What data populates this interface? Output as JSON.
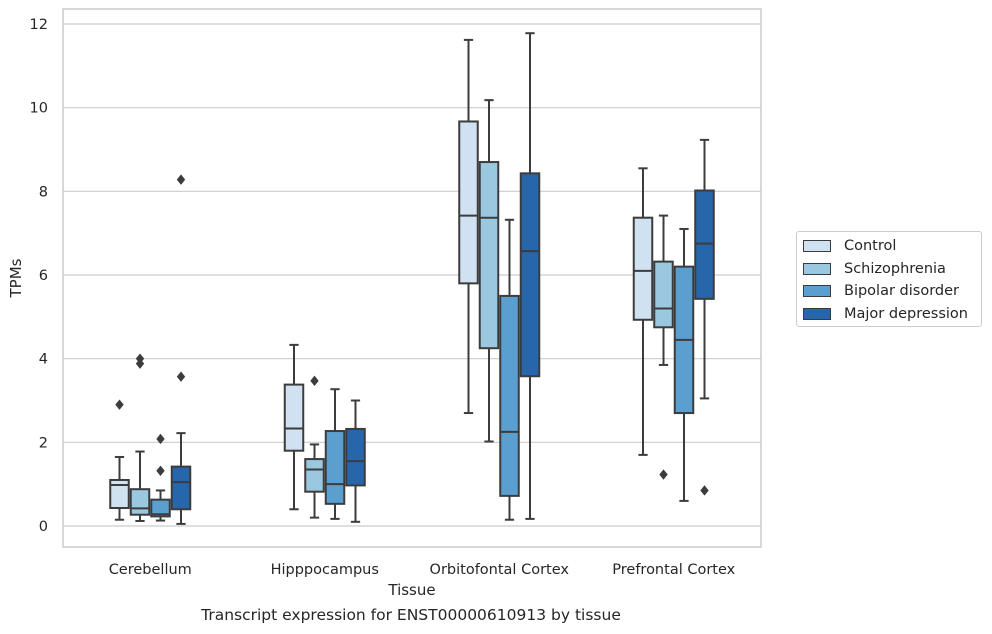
{
  "caption": "Transcript expression for ENST00000610913 by tissue",
  "chart_data": {
    "type": "box",
    "title": "",
    "xlabel": "Tissue",
    "ylabel": "TPMs",
    "ylim": [
      -0.5,
      12.35
    ],
    "yticks": [
      0,
      2,
      4,
      6,
      8,
      10,
      12
    ],
    "grid": true,
    "legend_position": "right",
    "categories": [
      "Cerebellum",
      "Hipppocampus",
      "Orbitofontal Cortex",
      "Prefrontal Cortex"
    ],
    "series": [
      {
        "name": "Control",
        "color": "#d0e1f2",
        "boxes": [
          {
            "whisker_low": 0.15,
            "q1": 0.43,
            "median": 0.98,
            "q3": 1.1,
            "whisker_high": 1.65,
            "outliers": [
              2.9
            ]
          },
          {
            "whisker_low": 0.4,
            "q1": 1.8,
            "median": 2.33,
            "q3": 3.38,
            "whisker_high": 4.33,
            "outliers": []
          },
          {
            "whisker_low": 2.7,
            "q1": 5.8,
            "median": 7.42,
            "q3": 9.67,
            "whisker_high": 11.62,
            "outliers": []
          },
          {
            "whisker_low": 1.7,
            "q1": 4.93,
            "median": 6.1,
            "q3": 7.37,
            "whisker_high": 8.55,
            "outliers": []
          }
        ]
      },
      {
        "name": "Schizophrenia",
        "color": "#9ac8e0",
        "boxes": [
          {
            "whisker_low": 0.12,
            "q1": 0.27,
            "median": 0.42,
            "q3": 0.88,
            "whisker_high": 1.78,
            "outliers": [
              3.88,
              4.0
            ]
          },
          {
            "whisker_low": 0.2,
            "q1": 0.82,
            "median": 1.35,
            "q3": 1.6,
            "whisker_high": 1.95,
            "outliers": [
              3.47
            ]
          },
          {
            "whisker_low": 2.02,
            "q1": 4.25,
            "median": 7.37,
            "q3": 8.7,
            "whisker_high": 10.18,
            "outliers": []
          },
          {
            "whisker_low": 3.85,
            "q1": 4.75,
            "median": 5.2,
            "q3": 6.32,
            "whisker_high": 7.42,
            "outliers": [
              1.23
            ]
          }
        ]
      },
      {
        "name": "Bipolar disorder",
        "color": "#5a9fcf",
        "boxes": [
          {
            "whisker_low": 0.13,
            "q1": 0.23,
            "median": 0.28,
            "q3": 0.63,
            "whisker_high": 0.85,
            "outliers": [
              1.32,
              2.08
            ]
          },
          {
            "whisker_low": 0.17,
            "q1": 0.53,
            "median": 1.0,
            "q3": 2.27,
            "whisker_high": 3.27,
            "outliers": []
          },
          {
            "whisker_low": 0.15,
            "q1": 0.72,
            "median": 2.25,
            "q3": 5.5,
            "whisker_high": 7.32,
            "outliers": []
          },
          {
            "whisker_low": 0.6,
            "q1": 2.7,
            "median": 4.45,
            "q3": 6.2,
            "whisker_high": 7.1,
            "outliers": []
          }
        ]
      },
      {
        "name": "Major depression",
        "color": "#2766ab",
        "boxes": [
          {
            "whisker_low": 0.05,
            "q1": 0.4,
            "median": 1.05,
            "q3": 1.42,
            "whisker_high": 2.22,
            "outliers": [
              3.57,
              8.28
            ]
          },
          {
            "whisker_low": 0.1,
            "q1": 0.97,
            "median": 1.55,
            "q3": 2.32,
            "whisker_high": 3.0,
            "outliers": []
          },
          {
            "whisker_low": 0.17,
            "q1": 3.58,
            "median": 6.57,
            "q3": 8.43,
            "whisker_high": 11.78,
            "outliers": []
          },
          {
            "whisker_low": 3.05,
            "q1": 5.43,
            "median": 6.75,
            "q3": 8.02,
            "whisker_high": 9.23,
            "outliers": [
              0.85
            ]
          }
        ]
      }
    ]
  }
}
